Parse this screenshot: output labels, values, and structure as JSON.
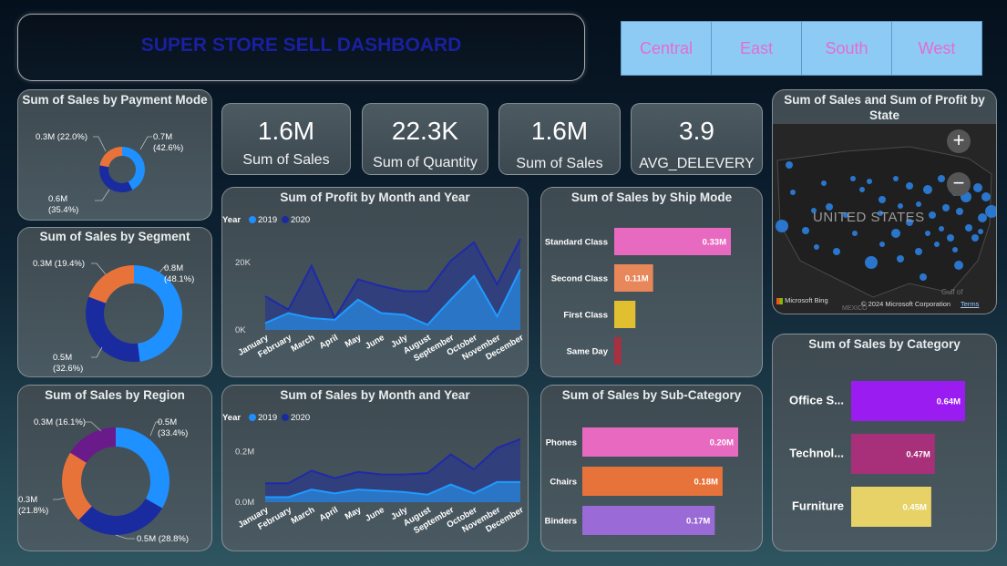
{
  "header": {
    "title": "SUPER STORE SELL DASHBOARD"
  },
  "slicers": [
    "Central",
    "East",
    "South",
    "West"
  ],
  "kpis": [
    {
      "value": "1.6M",
      "label": "Sum of Sales"
    },
    {
      "value": "22.3K",
      "label": "Sum of Quantity"
    },
    {
      "value": "1.6M",
      "label": "Sum of Sales"
    },
    {
      "value": "3.9",
      "label": "AVG_DELEVERY"
    }
  ],
  "colors": {
    "blue": "#1e90ff",
    "navy": "#1a2ba0",
    "orange": "#e8733a",
    "purple": "#6a1a8a",
    "pink": "#e86ac0",
    "lightorange": "#e8875a",
    "yellow": "#e0c030",
    "maroon": "#a83040",
    "violet": "#9b1cf0",
    "magenta": "#a8307a",
    "sand": "#e6d266",
    "subviolet": "#9a6ad6",
    "lightblue": "#1e8fff"
  },
  "donuts": {
    "payment": {
      "title": "Sum of Sales by Payment Mode",
      "slices": [
        {
          "label": "0.7M (42.6%)",
          "label_lines": [
            "0.7M",
            "(42.6%)"
          ],
          "value": 42.6
        },
        {
          "label": "0.6M (35.4%)",
          "label_lines": [
            "0.6M",
            "(35.4%)"
          ],
          "value": 35.4
        },
        {
          "label": "0.3M (22.0%)",
          "label_lines": [
            "0.3M (22.0%)"
          ],
          "value": 22.0
        }
      ]
    },
    "segment": {
      "title": "Sum of Sales by Segment",
      "slices": [
        {
          "label": "0.8M (48.1%)",
          "label_lines": [
            "0.8M",
            "(48.1%)"
          ],
          "value": 48.1
        },
        {
          "label": "0.5M (32.6%)",
          "label_lines": [
            "0.5M",
            "(32.6%)"
          ],
          "value": 32.6
        },
        {
          "label": "0.3M (19.4%)",
          "label_lines": [
            "0.3M (19.4%)"
          ],
          "value": 19.4
        }
      ]
    },
    "region": {
      "title": "Sum of Sales by Region",
      "slices": [
        {
          "label": "0.5M (33.4%)",
          "label_lines": [
            "0.5M",
            "(33.4%)"
          ],
          "value": 33.4
        },
        {
          "label": "0.5M (28.8%)",
          "label_lines": [
            "0.5M (28.8%)"
          ],
          "value": 28.8
        },
        {
          "label": "0.3M (21.8%)",
          "label_lines": [
            "0.3M",
            "(21.8%)"
          ],
          "value": 21.8
        },
        {
          "label": "0.3M (16.1%)",
          "label_lines": [
            "0.3M (16.1%)"
          ],
          "value": 16.1
        }
      ]
    }
  },
  "profit_chart": {
    "title": "Sum of Profit by Month and Year",
    "legend_title": "Year",
    "legend": [
      "2019",
      "2020"
    ],
    "yticks": [
      "20K",
      "0K"
    ]
  },
  "sales_chart": {
    "title": "Sum of Sales by Month and Year",
    "legend_title": "Year",
    "legend": [
      "2019",
      "2020"
    ],
    "yticks": [
      "0.2M",
      "0.0M"
    ]
  },
  "months": [
    "January",
    "February",
    "March",
    "April",
    "May",
    "June",
    "July",
    "August",
    "September",
    "October",
    "November",
    "December"
  ],
  "shipmode": {
    "title": "Sum of Sales by Ship Mode"
  },
  "subcat": {
    "title": "Sum of Sales by Sub-Category"
  },
  "category": {
    "title": "Sum of Sales by Category"
  },
  "map": {
    "title": "Sum of Sales and Sum of Profit by State",
    "country_label": "UNITED STATES",
    "attribution": "© 2024 Microsoft Corporation",
    "terms": "Terms",
    "brand": "Microsoft Bing",
    "zoom_in": "+",
    "zoom_out": "−",
    "gulf": "Gulf of",
    "mexico": "MEXICO"
  },
  "chart_data": [
    {
      "type": "pie",
      "title": "Sum of Sales by Payment Mode",
      "categories": [
        "",
        "",
        ""
      ],
      "values": [
        0.7,
        0.6,
        0.3
      ],
      "unit": "M",
      "percent": [
        42.6,
        35.4,
        22.0
      ]
    },
    {
      "type": "pie",
      "title": "Sum of Sales by Segment",
      "categories": [
        "",
        "",
        ""
      ],
      "values": [
        0.8,
        0.5,
        0.3
      ],
      "unit": "M",
      "percent": [
        48.1,
        32.6,
        19.4
      ]
    },
    {
      "type": "pie",
      "title": "Sum of Sales by Region",
      "categories": [
        "",
        "",
        "",
        ""
      ],
      "values": [
        0.5,
        0.5,
        0.3,
        0.3
      ],
      "unit": "M",
      "percent": [
        33.4,
        28.8,
        21.8,
        16.1
      ]
    },
    {
      "type": "area",
      "title": "Sum of Profit by Month and Year",
      "x": [
        "January",
        "February",
        "March",
        "April",
        "May",
        "June",
        "July",
        "August",
        "September",
        "October",
        "November",
        "December"
      ],
      "series": [
        {
          "name": "2019",
          "values": [
            2000,
            5000,
            3500,
            3000,
            9000,
            5000,
            4500,
            1500,
            9000,
            16000,
            4000,
            18000
          ]
        },
        {
          "name": "2020",
          "values": [
            10000,
            6000,
            19000,
            3500,
            15000,
            13000,
            11500,
            11500,
            20500,
            26000,
            13500,
            27000
          ]
        }
      ],
      "ylim": [
        0,
        30000
      ]
    },
    {
      "type": "area",
      "title": "Sum of Sales by Month and Year",
      "x": [
        "January",
        "February",
        "March",
        "April",
        "May",
        "June",
        "July",
        "August",
        "September",
        "October",
        "November",
        "December"
      ],
      "series": [
        {
          "name": "2019",
          "values": [
            0.02,
            0.02,
            0.05,
            0.035,
            0.05,
            0.045,
            0.04,
            0.03,
            0.07,
            0.035,
            0.08,
            0.08
          ]
        },
        {
          "name": "2020",
          "values": [
            0.075,
            0.075,
            0.125,
            0.095,
            0.12,
            0.11,
            0.11,
            0.115,
            0.19,
            0.13,
            0.215,
            0.25
          ]
        }
      ],
      "ylim": [
        0,
        0.3
      ]
    },
    {
      "type": "bar",
      "title": "Sum of Sales by Ship Mode",
      "categories": [
        "Standard Class",
        "Second Class",
        "First Class",
        "Same Day"
      ],
      "values": [
        0.33,
        0.11,
        0.06,
        0.02
      ],
      "labels": [
        "0.33M",
        "0.11M",
        "",
        ""
      ]
    },
    {
      "type": "bar",
      "title": "Sum of Sales by Sub-Category",
      "categories": [
        "Phones",
        "Chairs",
        "Binders"
      ],
      "values": [
        0.2,
        0.18,
        0.17
      ],
      "labels": [
        "0.20M",
        "0.18M",
        "0.17M"
      ]
    },
    {
      "type": "bar",
      "title": "Sum of Sales by Category",
      "categories": [
        "Office S...",
        "Technol...",
        "Furniture"
      ],
      "values": [
        0.64,
        0.47,
        0.45
      ],
      "labels": [
        "0.64M",
        "0.47M",
        "0.45M"
      ]
    }
  ]
}
